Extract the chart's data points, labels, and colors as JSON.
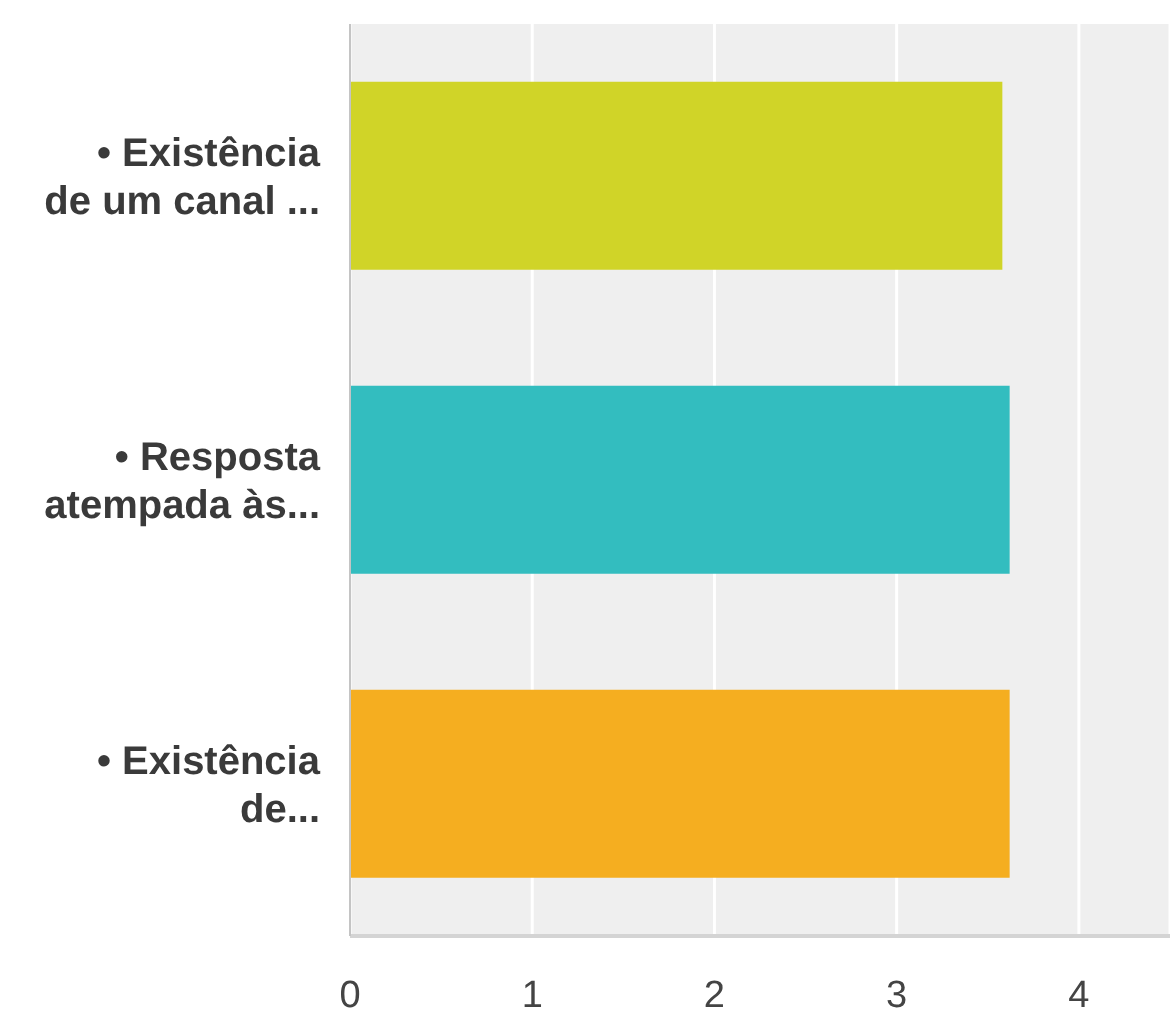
{
  "chart_data": {
    "type": "bar",
    "orientation": "horizontal",
    "categories": [
      "• Existência de um canal ...",
      "• Resposta atempada às...",
      "• Existência de..."
    ],
    "values": [
      3.58,
      3.62,
      3.62
    ],
    "colors": [
      "#d0d428",
      "#33bdbf",
      "#f5ae20"
    ],
    "xlim": [
      0,
      4.5
    ],
    "xticks": [
      0,
      1,
      2,
      3,
      4
    ],
    "grid": "x"
  }
}
